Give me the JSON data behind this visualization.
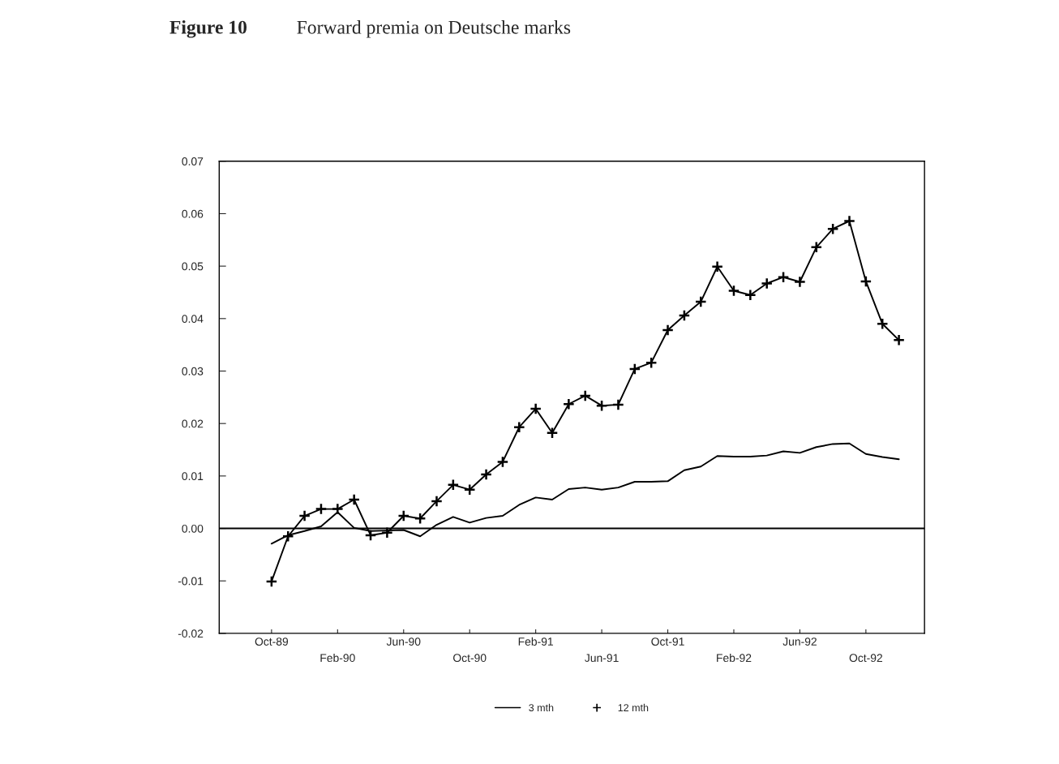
{
  "chart_data": {
    "type": "line",
    "title": "Figure 10",
    "subtitle": "Forward premia on Deutsche marks",
    "categories": [
      "Oct-89",
      null,
      null,
      null,
      "Feb-90",
      null,
      null,
      null,
      "Jun-90",
      null,
      null,
      null,
      "Oct-90",
      null,
      null,
      null,
      "Feb-91",
      null,
      null,
      null,
      "Jun-91",
      null,
      null,
      null,
      "Oct-91",
      null,
      null,
      null,
      "Feb-92",
      null,
      null,
      null,
      "Jun-92",
      null,
      null,
      null,
      "Oct-92",
      null,
      null
    ],
    "series": [
      {
        "name": "3 mth",
        "color": "#000000",
        "marker": "none",
        "values": [
          -0.0029,
          -0.0013,
          -0.0005,
          0.0004,
          0.0031,
          0.0001,
          -0.0005,
          -0.0004,
          -0.0003,
          -0.0015,
          0.0007,
          0.0022,
          0.0011,
          0.002,
          0.0024,
          0.0045,
          0.0059,
          0.0055,
          0.0075,
          0.0078,
          0.0074,
          0.0078,
          0.0089,
          0.0089,
          0.009,
          0.0111,
          0.0118,
          0.0138,
          0.0137,
          0.0137,
          0.0139,
          0.0147,
          0.0144,
          0.0155,
          0.0161,
          0.0162,
          0.0142,
          0.0136,
          0.0132
        ]
      },
      {
        "name": "12 mth",
        "color": "#000000",
        "marker": "cross",
        "values": [
          -0.0101,
          -0.0015,
          0.0024,
          0.0037,
          0.0037,
          0.0055,
          -0.0013,
          -0.0008,
          0.0024,
          0.0019,
          0.0052,
          0.0083,
          0.0074,
          0.0103,
          0.0127,
          0.0193,
          0.0228,
          0.0182,
          0.0237,
          0.0253,
          0.0234,
          0.0236,
          0.0304,
          0.0316,
          0.0378,
          0.0406,
          0.0432,
          0.0499,
          0.0453,
          0.0445,
          0.0467,
          0.0479,
          0.047,
          0.0536,
          0.0571,
          0.0586,
          0.0471,
          0.039,
          0.0359
        ]
      }
    ],
    "ylim": [
      -0.02,
      0.07
    ],
    "yticks": [
      -0.02,
      -0.01,
      {
        "value": 0,
        "label": "0.00"
      },
      0.01,
      0.02,
      0.03,
      0.04,
      0.05,
      0.06,
      0.07
    ],
    "ref_lines": [
      {
        "axis": "y",
        "value": 0,
        "color": "#000000"
      }
    ],
    "grid": false,
    "legend": "bottom",
    "line_style": "solid"
  }
}
